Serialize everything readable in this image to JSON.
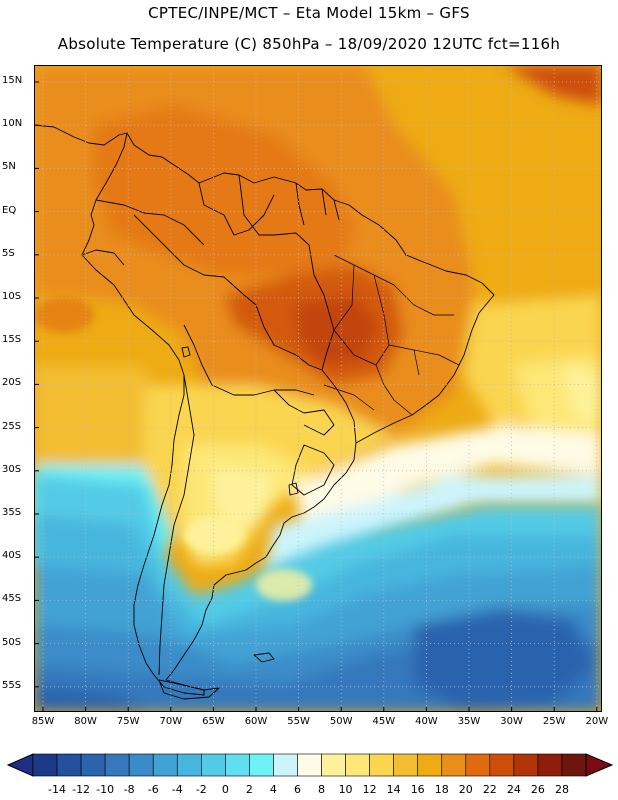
{
  "header": {
    "line1": "CPTEC/INPE/MCT –  Eta Model 15km – GFS",
    "line2": "Absolute Temperature (C) 850hPa – 18/09/2020 12UTC fct=116h"
  },
  "lat_labels": [
    "15N",
    "10N",
    "5N",
    "EQ",
    "5S",
    "10S",
    "15S",
    "20S",
    "25S",
    "30S",
    "35S",
    "40S",
    "45S",
    "50S",
    "55S"
  ],
  "lon_labels": [
    "85W",
    "80W",
    "75W",
    "70W",
    "65W",
    "60W",
    "55W",
    "50W",
    "45W",
    "40W",
    "35W",
    "30W",
    "25W",
    "20W"
  ],
  "colorbar": {
    "labels": [
      "-14",
      "-12",
      "-10",
      "-8",
      "-6",
      "-4",
      "-2",
      "0",
      "2",
      "4",
      "6",
      "8",
      "10",
      "12",
      "14",
      "16",
      "18",
      "20",
      "22",
      "24",
      "26",
      "28"
    ],
    "colors": [
      "#1c3a8a",
      "#24509c",
      "#2c63ad",
      "#3678bc",
      "#3a8cc8",
      "#42a2d4",
      "#46b6de",
      "#52cbe6",
      "#5fdfef",
      "#6ff2f7",
      "#cdf4fb",
      "#fefbe6",
      "#fdf29b",
      "#fde776",
      "#fad54f",
      "#f3bd32",
      "#eeab14",
      "#e98d1b",
      "#e06a10",
      "#cd4e0b",
      "#b2350a",
      "#8e1d0b",
      "#6d160e"
    ],
    "left_arrow": "#1f2f85",
    "right_arrow": "#7a0b12"
  }
}
